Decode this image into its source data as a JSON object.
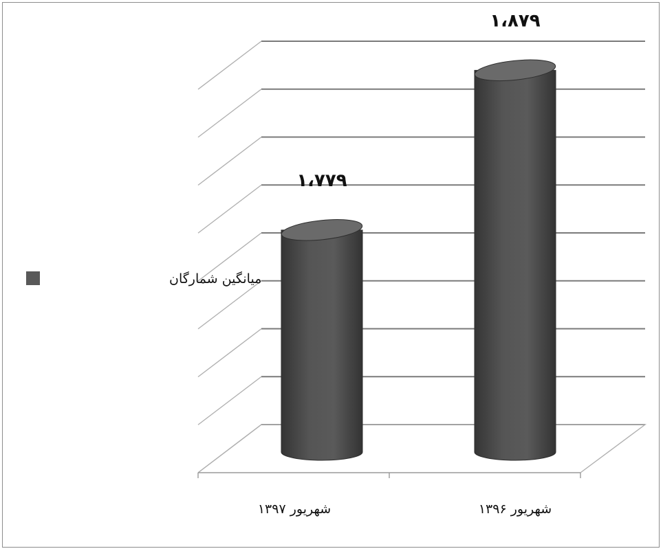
{
  "chart_data": {
    "type": "bar",
    "style": "3d-cylinder",
    "categories": [
      "شهریور ۱۳۹۷",
      "شهریور ۱۳۹۶"
    ],
    "series": [
      {
        "name": "میانگین شمارگان",
        "values": [
          1779,
          1879
        ],
        "labels": [
          "۱،۷۷۹",
          "۱،۸۷۹"
        ]
      }
    ],
    "ylim": [
      1640,
      1880
    ],
    "gridlines": 9,
    "grid": true,
    "legend": "left",
    "colors": {
      "bar": "#505050",
      "bar_dark": "#2e2e2e",
      "bar_light": "#6a6a6a",
      "grid": "#7a7a7a",
      "legend_swatch": "#595959"
    }
  }
}
